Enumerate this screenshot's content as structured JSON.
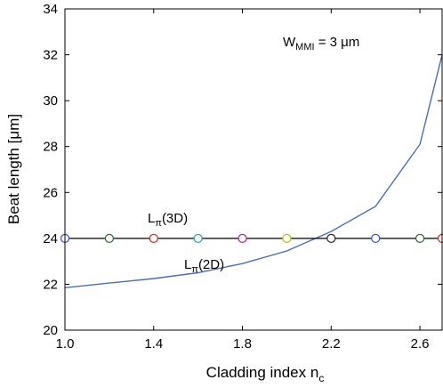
{
  "chart_data": {
    "type": "line",
    "xlabel": "Cladding index n",
    "xlabel_subscript": "c",
    "ylabel": "Beat length [μm]",
    "xlim": [
      1.0,
      2.7
    ],
    "ylim": [
      20,
      34
    ],
    "x_ticks": [
      1.0,
      1.4,
      1.8,
      2.2,
      2.6
    ],
    "x_tick_labels": [
      "1.0",
      "1.4",
      "1.8",
      "2.2",
      "2.6"
    ],
    "y_ticks": [
      20,
      22,
      24,
      26,
      28,
      30,
      32,
      34
    ],
    "y_tick_labels": [
      "20",
      "22",
      "24",
      "26",
      "28",
      "30",
      "32",
      "34"
    ],
    "grid": false,
    "series": [
      {
        "name": "Lπ(2D)",
        "color": "#4a6fb5",
        "x": [
          1.0,
          1.2,
          1.4,
          1.6,
          1.8,
          2.0,
          2.2,
          2.4,
          2.6,
          2.7
        ],
        "y": [
          21.85,
          22.05,
          22.25,
          22.5,
          22.9,
          23.45,
          24.3,
          25.4,
          28.1,
          32.0
        ]
      },
      {
        "name": "Lπ(3D)",
        "color": "#000000",
        "x": [
          1.0,
          2.7
        ],
        "y": [
          24.0,
          24.0
        ]
      }
    ],
    "markers": {
      "y": 24.0,
      "x": [
        1.0,
        1.2,
        1.4,
        1.6,
        1.8,
        2.0,
        2.2,
        2.4,
        2.6,
        2.7
      ],
      "colors": [
        "#3355cc",
        "#336633",
        "#dd2222",
        "#22aaaa",
        "#aa22aa",
        "#bbbb22",
        "#222222",
        "#3355cc",
        "#336633",
        "#dd2222"
      ]
    },
    "annotations": {
      "w_mmi_main": "W",
      "w_mmi_sub": "MMI",
      "w_mmi_rest": " = 3 μm",
      "l3d_main": "L",
      "l3d_sub": "π",
      "l3d_rest": "(3D)",
      "l2d_main": "L",
      "l2d_sub": "π",
      "l2d_rest": "(2D)"
    }
  }
}
